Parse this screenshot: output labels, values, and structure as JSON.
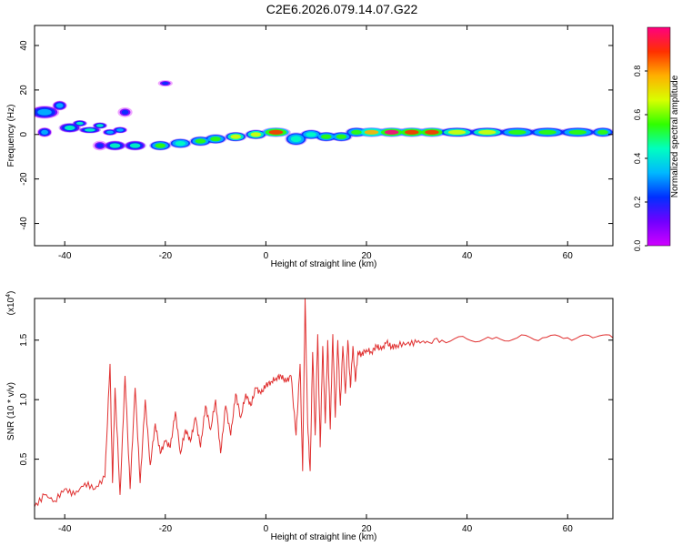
{
  "title": "C2E6.2026.079.14.07.G22",
  "colors": {
    "snr_line": "#e03030",
    "axes": "#000000",
    "colorbar_stops": [
      "#ff0080",
      "#ff3000",
      "#ffb000",
      "#d8ff00",
      "#30ff00",
      "#00ffc0",
      "#00b8ff",
      "#0030ff",
      "#7000ff",
      "#d000ff"
    ]
  },
  "chart_data": [
    {
      "type": "heatmap",
      "name": "spectrogram",
      "xlabel": "Height of straight line (km)",
      "ylabel": "Frequency (Hz)",
      "xlim": [
        -46,
        69
      ],
      "ylim": [
        -50,
        49
      ],
      "x_ticks": [
        -40,
        -20,
        0,
        20,
        40,
        60
      ],
      "x_tick_labels": [
        "-40",
        "-20",
        "0",
        "20",
        "40",
        "60"
      ],
      "y_ticks": [
        40,
        20,
        0,
        -20,
        -40
      ],
      "y_tick_labels": [
        "40",
        "20",
        "0",
        "-20",
        "-40"
      ],
      "colorbar": {
        "label": "Normalized spectral amplitude",
        "range": [
          0,
          1
        ],
        "ticks": [
          0.0,
          0.2,
          0.4,
          0.6,
          0.8
        ],
        "tick_labels": [
          "0.0",
          "0.2",
          "0.4",
          "0.6",
          "0.8"
        ]
      },
      "blobs": [
        {
          "x": -44,
          "y": 10,
          "w": 4,
          "h": 4,
          "amp": 0.3
        },
        {
          "x": -41,
          "y": 13,
          "w": 2,
          "h": 3,
          "amp": 0.35
        },
        {
          "x": -44,
          "y": 1,
          "w": 2,
          "h": 3,
          "amp": 0.3
        },
        {
          "x": -39,
          "y": 3,
          "w": 3,
          "h": 3,
          "amp": 0.4
        },
        {
          "x": -37,
          "y": 5,
          "w": 2,
          "h": 2,
          "amp": 0.4
        },
        {
          "x": -35,
          "y": 2,
          "w": 3,
          "h": 2,
          "amp": 0.45
        },
        {
          "x": -33,
          "y": 4,
          "w": 2,
          "h": 2,
          "amp": 0.4
        },
        {
          "x": -31,
          "y": 1,
          "w": 2,
          "h": 2,
          "amp": 0.3
        },
        {
          "x": -29,
          "y": 2,
          "w": 2,
          "h": 2,
          "amp": 0.35
        },
        {
          "x": -28,
          "y": 10,
          "w": 2,
          "h": 3,
          "amp": 0.2
        },
        {
          "x": -20,
          "y": 23,
          "w": 2,
          "h": 2,
          "amp": 0.25
        },
        {
          "x": -33,
          "y": -5,
          "w": 2,
          "h": 3,
          "amp": 0.2
        },
        {
          "x": -30,
          "y": -5,
          "w": 3,
          "h": 3,
          "amp": 0.4
        },
        {
          "x": -26,
          "y": -5,
          "w": 3,
          "h": 3,
          "amp": 0.45
        },
        {
          "x": -21,
          "y": -5,
          "w": 3,
          "h": 3,
          "amp": 0.6
        },
        {
          "x": -17,
          "y": -4,
          "w": 3,
          "h": 3,
          "amp": 0.5
        },
        {
          "x": -13,
          "y": -3,
          "w": 3,
          "h": 3,
          "amp": 0.55
        },
        {
          "x": -10,
          "y": -2,
          "w": 3,
          "h": 3,
          "amp": 0.6
        },
        {
          "x": -6,
          "y": -1,
          "w": 3,
          "h": 3,
          "amp": 0.65
        },
        {
          "x": -2,
          "y": 0,
          "w": 3,
          "h": 3,
          "amp": 0.7
        },
        {
          "x": 2,
          "y": 1,
          "w": 4,
          "h": 3,
          "amp": 0.9
        },
        {
          "x": 6,
          "y": -2,
          "w": 3,
          "h": 4,
          "amp": 0.5
        },
        {
          "x": 9,
          "y": 0,
          "w": 3,
          "h": 3,
          "amp": 0.5
        },
        {
          "x": 12,
          "y": -1,
          "w": 3,
          "h": 3,
          "amp": 0.55
        },
        {
          "x": 15,
          "y": -1,
          "w": 3,
          "h": 3,
          "amp": 0.6
        },
        {
          "x": 18,
          "y": 1,
          "w": 3,
          "h": 3,
          "amp": 0.6
        },
        {
          "x": 21,
          "y": 1,
          "w": 4,
          "h": 3,
          "amp": 0.8
        },
        {
          "x": 25,
          "y": 1,
          "w": 4,
          "h": 3,
          "amp": 0.95
        },
        {
          "x": 29,
          "y": 1,
          "w": 4,
          "h": 3,
          "amp": 0.9
        },
        {
          "x": 33,
          "y": 1,
          "w": 4,
          "h": 3,
          "amp": 0.85
        },
        {
          "x": 38,
          "y": 1,
          "w": 5,
          "h": 3,
          "amp": 0.7
        },
        {
          "x": 44,
          "y": 1,
          "w": 5,
          "h": 3,
          "amp": 0.65
        },
        {
          "x": 50,
          "y": 1,
          "w": 5,
          "h": 3,
          "amp": 0.6
        },
        {
          "x": 56,
          "y": 1,
          "w": 5,
          "h": 3,
          "amp": 0.6
        },
        {
          "x": 62,
          "y": 1,
          "w": 5,
          "h": 3,
          "amp": 0.6
        },
        {
          "x": 67,
          "y": 1,
          "w": 3,
          "h": 3,
          "amp": 0.55
        }
      ]
    },
    {
      "type": "line",
      "name": "snr",
      "xlabel": "Height of straight line (km)",
      "ylabel": "SNR (10 * v/v)",
      "y_multiplier_label": "(x10",
      "y_multiplier_exponent": "4",
      "xlim": [
        -46,
        69
      ],
      "ylim": [
        0,
        1.85
      ],
      "x_ticks": [
        -40,
        -20,
        0,
        20,
        40,
        60
      ],
      "x_tick_labels": [
        "-40",
        "-20",
        "0",
        "20",
        "40",
        "60"
      ],
      "y_ticks": [
        0.5,
        1.0,
        1.5
      ],
      "y_tick_labels": [
        "0.5",
        "1.0",
        "1.5"
      ],
      "series": [
        {
          "name": "SNR",
          "x": [
            -46,
            -44,
            -42,
            -40,
            -38,
            -36,
            -34,
            -32,
            -31,
            -30.5,
            -30,
            -29,
            -28,
            -27,
            -26,
            -25,
            -24,
            -23,
            -22,
            -21,
            -20,
            -19,
            -18,
            -17,
            -16,
            -15,
            -14,
            -13,
            -12,
            -11,
            -10,
            -9,
            -8,
            -7,
            -6,
            -5,
            -4,
            -3,
            -2,
            -1,
            0,
            1,
            2,
            3,
            4,
            5,
            6,
            6.8,
            7.3,
            7.8,
            8.3,
            8.8,
            9.3,
            9.8,
            10.3,
            10.8,
            11.3,
            11.8,
            12.3,
            12.8,
            13.3,
            13.8,
            14.3,
            14.8,
            15.3,
            15.8,
            16.3,
            16.8,
            17.3,
            17.8,
            18.3,
            19,
            20,
            21,
            22,
            23,
            24,
            25,
            26,
            28,
            30,
            32,
            35,
            40,
            45,
            50,
            55,
            60,
            65,
            69
          ],
          "y": [
            0.1,
            0.2,
            0.15,
            0.25,
            0.2,
            0.3,
            0.25,
            0.35,
            1.3,
            0.3,
            1.1,
            0.2,
            1.2,
            0.25,
            1.1,
            0.3,
            1.0,
            0.45,
            0.8,
            0.55,
            0.65,
            0.6,
            0.9,
            0.55,
            0.75,
            0.65,
            0.85,
            0.6,
            0.95,
            0.75,
            1.0,
            0.55,
            0.95,
            0.7,
            1.05,
            0.85,
            1.05,
            0.95,
            1.1,
            1.05,
            1.12,
            1.15,
            1.18,
            1.2,
            1.15,
            1.2,
            0.7,
            1.3,
            0.4,
            1.85,
            0.8,
            0.4,
            1.4,
            0.7,
            1.55,
            0.6,
            1.45,
            0.8,
            1.5,
            0.75,
            1.55,
            0.85,
            1.5,
            0.95,
            1.45,
            1.05,
            1.5,
            1.1,
            1.45,
            1.15,
            1.4,
            1.38,
            1.42,
            1.4,
            1.45,
            1.42,
            1.48,
            1.44,
            1.46,
            1.47,
            1.48,
            1.49,
            1.5,
            1.51,
            1.51,
            1.52,
            1.52,
            1.52,
            1.52,
            1.52
          ]
        }
      ]
    }
  ]
}
